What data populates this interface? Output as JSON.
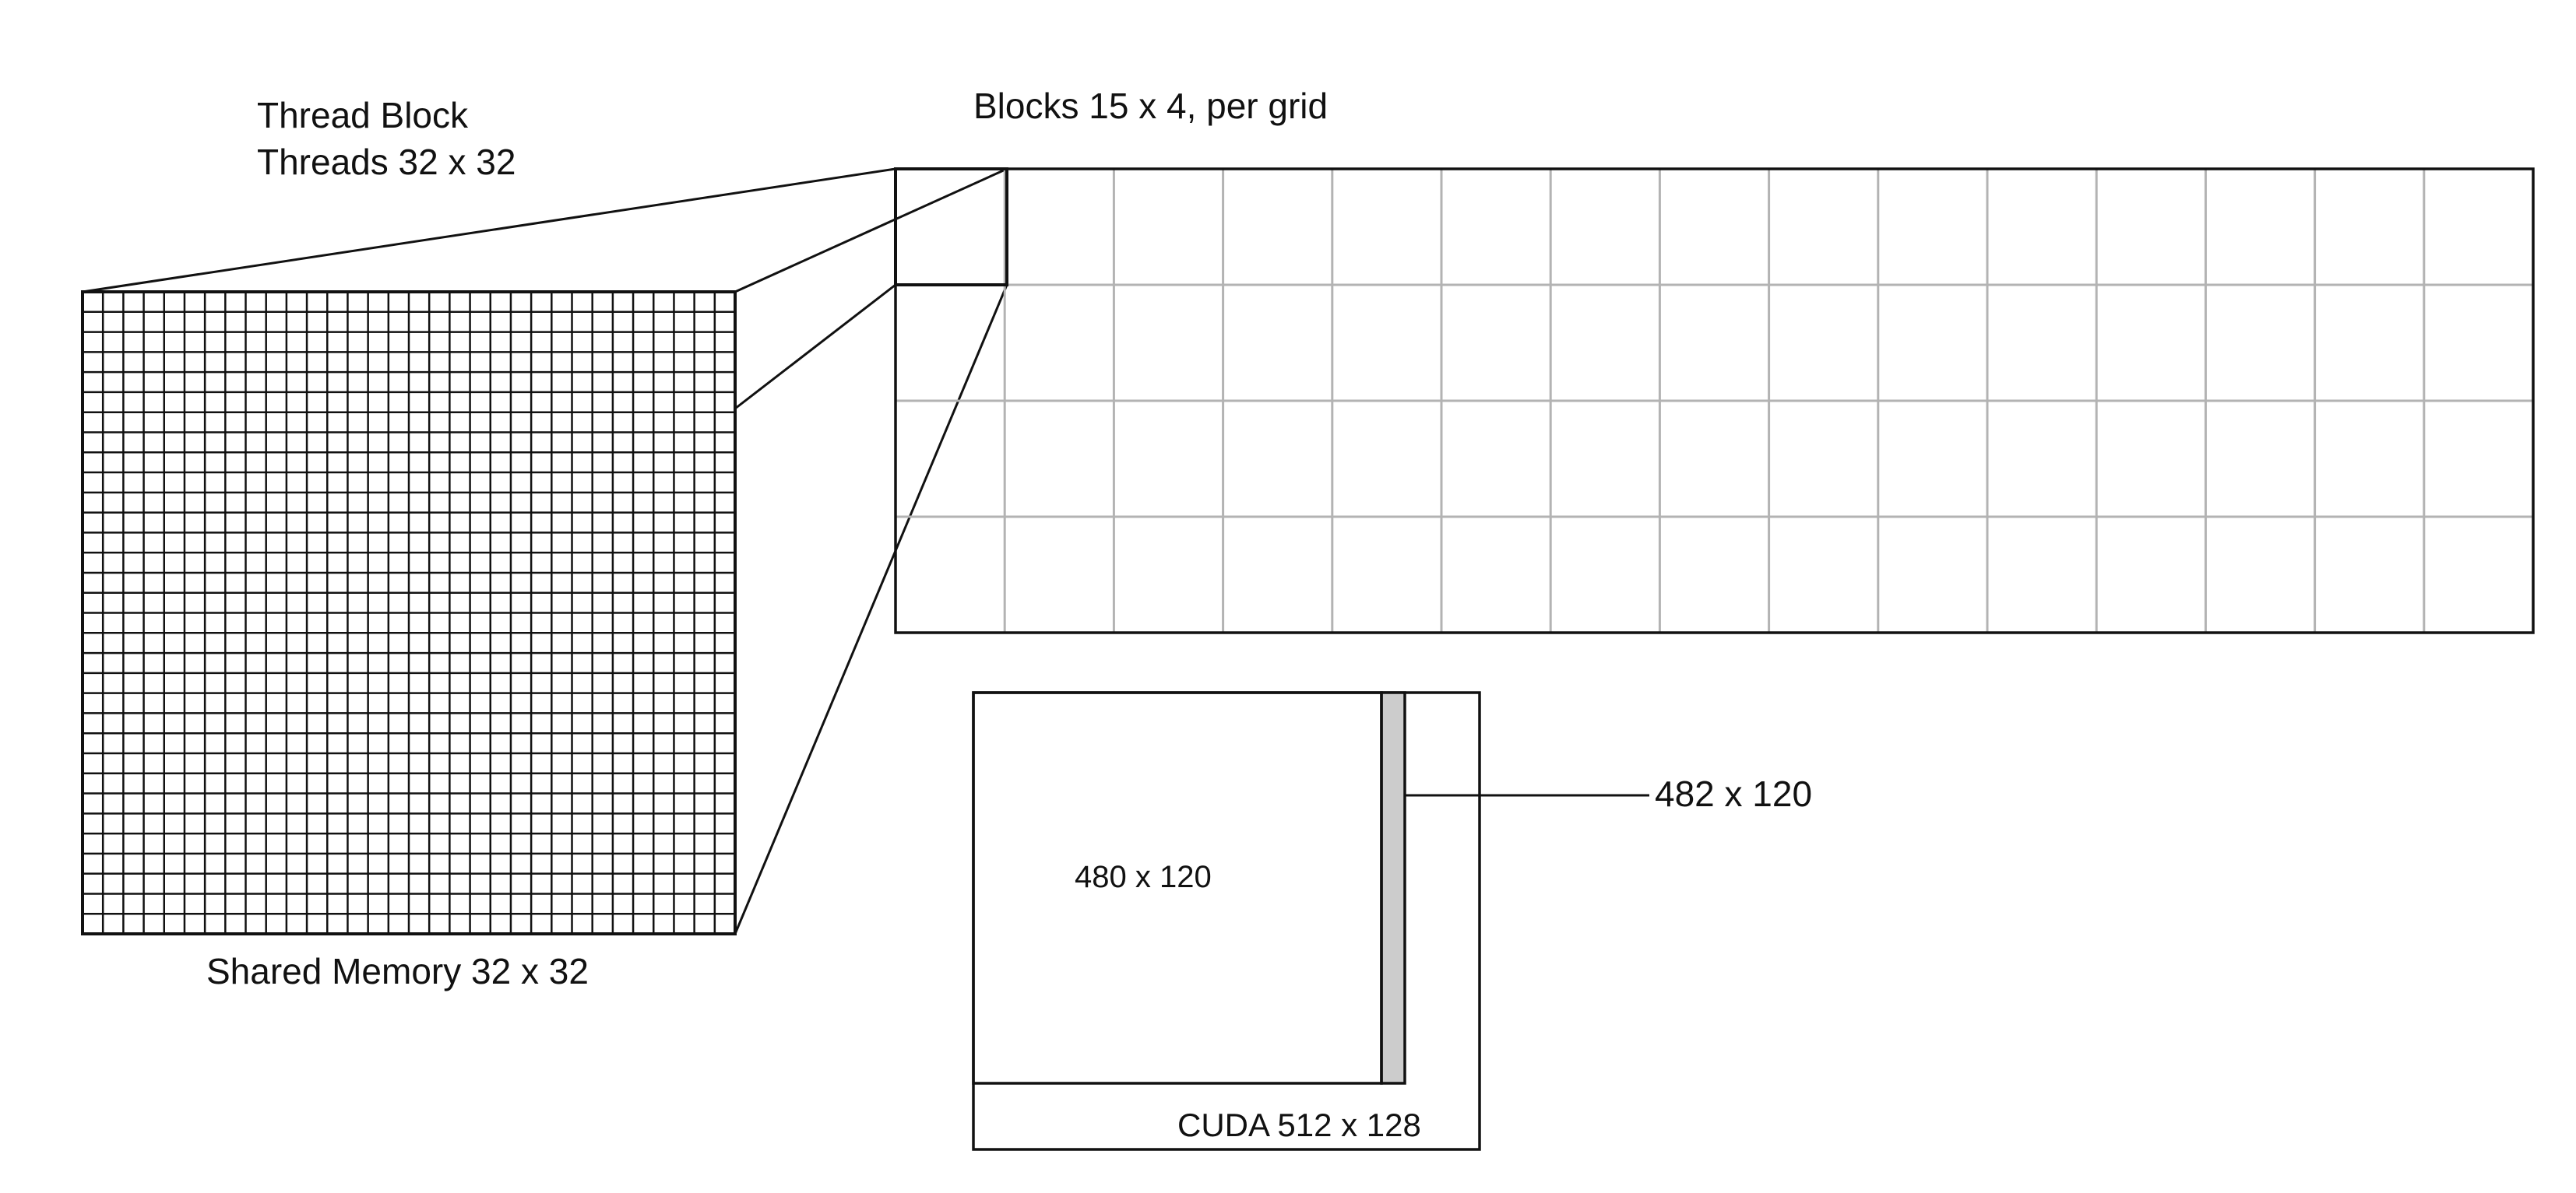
{
  "thread_block": {
    "title": "Thread Block",
    "threads_label": "Threads 32 x 32",
    "shared_memory_label": "Shared Memory 32 x 32",
    "rows": 32,
    "cols": 32
  },
  "grid": {
    "label": "Blocks 15 x 4, per grid",
    "cols": 15,
    "rows": 4
  },
  "cuda": {
    "outer_label": "CUDA 512 x 128",
    "inner_label": "480 x 120",
    "strip_label": "482 x 120"
  },
  "colors": {
    "line": "#111111",
    "grid_line": "#b3b3b3",
    "strip_fill": "#cccccc"
  }
}
